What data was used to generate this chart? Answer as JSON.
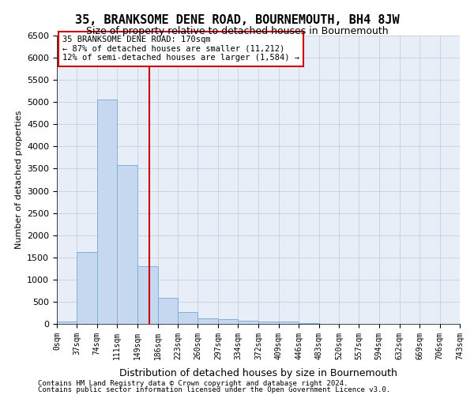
{
  "title_line1": "35, BRANKSOME DENE ROAD, BOURNEMOUTH, BH4 8JW",
  "title_line2": "Size of property relative to detached houses in Bournemouth",
  "xlabel": "Distribution of detached houses by size in Bournemouth",
  "ylabel": "Number of detached properties",
  "footer_line1": "Contains HM Land Registry data © Crown copyright and database right 2024.",
  "footer_line2": "Contains public sector information licensed under the Open Government Licence v3.0.",
  "annotation_line1": "35 BRANKSOME DENE ROAD: 170sqm",
  "annotation_line2": "← 87% of detached houses are smaller (11,212)",
  "annotation_line3": "12% of semi-detached houses are larger (1,584) →",
  "property_size": 170,
  "bin_edges": [
    0,
    37,
    74,
    111,
    149,
    186,
    223,
    260,
    297,
    334,
    372,
    409,
    446,
    483,
    520,
    557,
    594,
    632,
    669,
    706,
    743
  ],
  "bar_heights": [
    50,
    1620,
    5050,
    3580,
    1300,
    580,
    275,
    130,
    100,
    70,
    60,
    50,
    10,
    5,
    5,
    5,
    5,
    5,
    5,
    5
  ],
  "bar_color": "#c5d8f0",
  "bar_edge_color": "#7fb0d8",
  "vline_color": "#cc0000",
  "annotation_box_edge_color": "#cc0000",
  "grid_color": "#c0c8d8",
  "background_color": "#e8eef8",
  "ylim": [
    0,
    6500
  ],
  "yticks": [
    0,
    500,
    1000,
    1500,
    2000,
    2500,
    3000,
    3500,
    4000,
    4500,
    5000,
    5500,
    6000,
    6500
  ]
}
